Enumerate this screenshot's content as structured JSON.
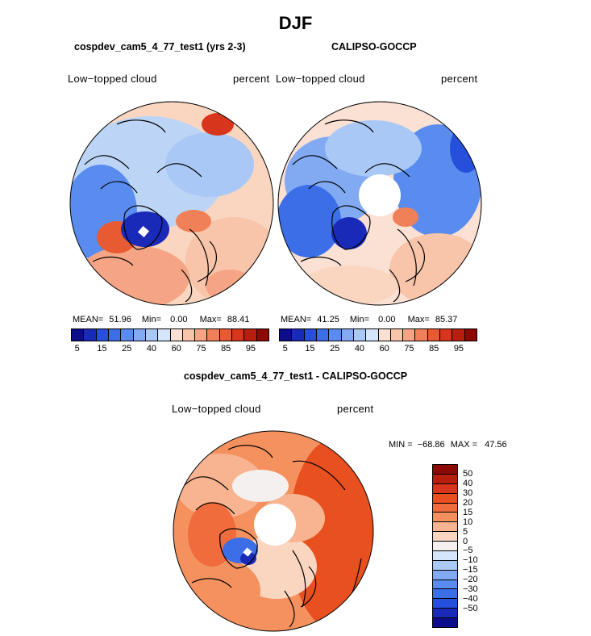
{
  "title": "DJF",
  "panels": [
    {
      "id": "model",
      "title": "cospdev_cam5_4_77_test1 (yrs 2-3)",
      "left_label": "Low−topped cloud",
      "right_label": "percent",
      "stats": {
        "mean_label": "MEAN=",
        "mean": "51.96",
        "min_label": "Min=",
        "min": "0.00",
        "max_label": "Max=",
        "max": "88.41"
      }
    },
    {
      "id": "obs",
      "title": "CALIPSO-GOCCP",
      "left_label": "Low−topped cloud",
      "right_label": "percent",
      "stats": {
        "mean_label": "MEAN=",
        "mean": "41.25",
        "min_label": "Min=",
        "min": "0.00",
        "max_label": "Max=",
        "max": "85.37"
      }
    }
  ],
  "abs_colorbar": {
    "colors": [
      "#0d0d8c",
      "#1a2ab8",
      "#2650dc",
      "#3c6ee8",
      "#5a8cf0",
      "#82aaf2",
      "#aac8f6",
      "#d6e6fa",
      "#fbe0d4",
      "#f8c4aa",
      "#f5a585",
      "#f08058",
      "#e85a32",
      "#d8361c",
      "#b81e10",
      "#8c0a04"
    ],
    "tick_labels": [
      "5",
      "15",
      "25",
      "40",
      "60",
      "75",
      "85",
      "95"
    ]
  },
  "diff_panel": {
    "title": "cospdev_cam5_4_77_test1 - CALIPSO-GOCCP",
    "left_label": "Low−topped cloud",
    "right_label": "percent",
    "min_label": "MIN =",
    "min": "−68.86",
    "max_label": "MAX =",
    "max": "47.56"
  },
  "diff_colorbar": {
    "colors": [
      "#8c0a04",
      "#b81e10",
      "#d8361c",
      "#e85020",
      "#f06c3c",
      "#f5915e",
      "#f8b490",
      "#fad6c0",
      "#f4f0f0",
      "#d6e6fa",
      "#aac8f6",
      "#82aaf2",
      "#5a8cf0",
      "#3c6ee8",
      "#2650dc",
      "#1a2ab8",
      "#0d0d8c"
    ],
    "tick_labels": [
      "50",
      "40",
      "30",
      "20",
      "15",
      "10",
      "5",
      "0",
      "−5",
      "−10",
      "−15",
      "−20",
      "−30",
      "−40",
      "−50"
    ]
  }
}
